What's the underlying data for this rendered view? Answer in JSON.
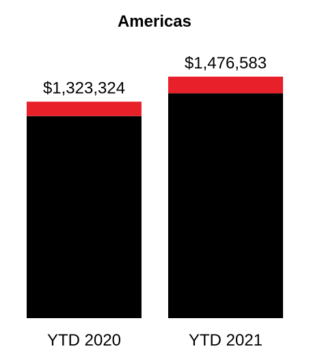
{
  "chart_data": {
    "type": "bar",
    "stacked": true,
    "title": "Americas",
    "categories": [
      "YTD 2020",
      "YTD 2021"
    ],
    "totals": [
      "$1,323,324",
      "$1,476,583"
    ],
    "total_values": [
      1323324,
      1476583
    ],
    "segments": [
      {
        "color": "#000000",
        "values": [
          1235000,
          1375000
        ]
      },
      {
        "color": "#e8202a",
        "values": [
          88324,
          101583
        ]
      }
    ],
    "ylim": [
      0,
      1476583
    ],
    "grid": false,
    "legend": "none"
  }
}
